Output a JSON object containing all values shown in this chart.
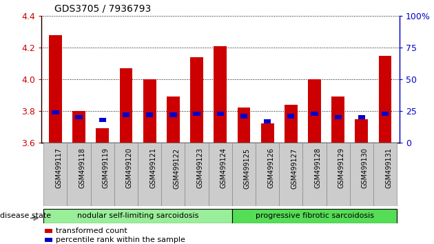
{
  "title": "GDS3705 / 7936793",
  "samples": [
    "GSM499117",
    "GSM499118",
    "GSM499119",
    "GSM499120",
    "GSM499121",
    "GSM499122",
    "GSM499123",
    "GSM499124",
    "GSM499125",
    "GSM499126",
    "GSM499127",
    "GSM499128",
    "GSM499129",
    "GSM499130",
    "GSM499131"
  ],
  "transformed_count": [
    4.28,
    3.8,
    3.69,
    4.07,
    4.0,
    3.89,
    4.14,
    4.21,
    3.82,
    3.72,
    3.84,
    4.0,
    3.89,
    3.75,
    4.15
  ],
  "percentile_rank": [
    24,
    20,
    18,
    22,
    22,
    22,
    23,
    23,
    21,
    17,
    21,
    23,
    20,
    20,
    23
  ],
  "ylim_left": [
    3.6,
    4.4
  ],
  "ylim_right": [
    0,
    100
  ],
  "yticks_left": [
    3.6,
    3.8,
    4.0,
    4.2,
    4.4
  ],
  "yticks_right": [
    0,
    25,
    50,
    75,
    100
  ],
  "group1_label": "nodular self-limiting sarcoidosis",
  "group2_label": "progressive fibrotic sarcoidosis",
  "group1_count": 8,
  "group2_count": 7,
  "disease_state_label": "disease state",
  "legend_red_label": "transformed count",
  "legend_blue_label": "percentile rank within the sample",
  "bar_color_red": "#cc0000",
  "bar_color_blue": "#0000cc",
  "group1_color": "#99ee99",
  "group2_color": "#55dd55",
  "tick_bg_color": "#cccccc",
  "bar_width": 0.55,
  "baseline": 3.6
}
